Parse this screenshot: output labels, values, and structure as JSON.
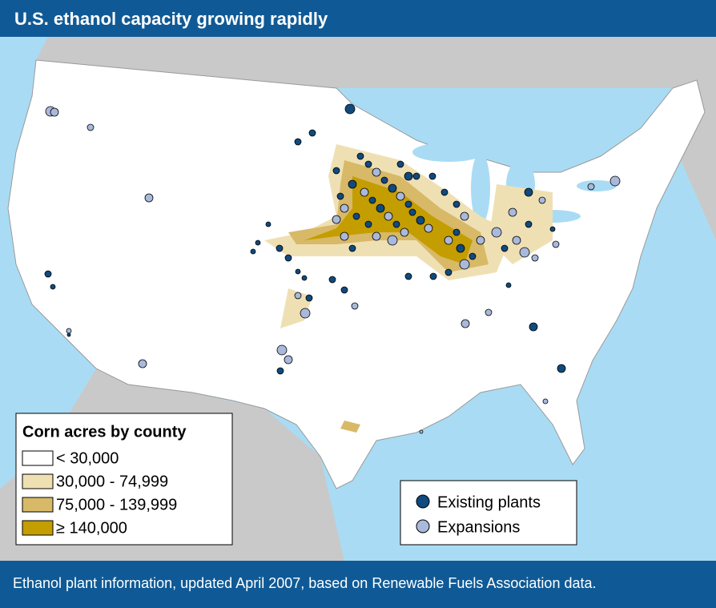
{
  "header": {
    "title": "U.S. ethanol capacity growing rapidly"
  },
  "legend_corn": {
    "title": "Corn acres by county",
    "items": [
      "< 30,000",
      "30,000 - 74,999",
      "75,000 - 139,999",
      "≥ 140,000"
    ]
  },
  "legend_plants": {
    "items": [
      "Existing plants",
      "Expansions"
    ]
  },
  "footnote": "Ethanol plant information, updated April 2007, based on Renewable Fuels Association data."
}
